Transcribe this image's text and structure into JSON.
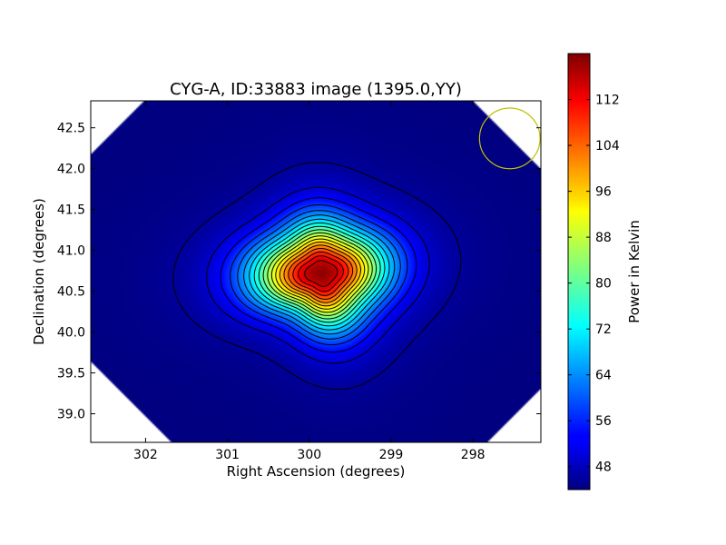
{
  "chart_data": {
    "type": "heatmap",
    "title": "CYG-A, ID:33883 image (1395.0,YY)",
    "xlabel": "Right Ascension (degrees)",
    "ylabel": "Declination (degrees)",
    "xlim": [
      302.67,
      297.17
    ],
    "ylim": [
      38.65,
      42.83
    ],
    "x_inverted": true,
    "x_ticks": [
      "302",
      "301",
      "300",
      "299",
      "298"
    ],
    "x_tick_values": [
      302,
      301,
      300,
      299,
      298
    ],
    "y_ticks": [
      "39.0",
      "39.5",
      "40.0",
      "40.5",
      "41.0",
      "41.5",
      "42.0",
      "42.5"
    ],
    "y_tick_values": [
      39.0,
      39.5,
      40.0,
      40.5,
      41.0,
      41.5,
      42.0,
      42.5
    ],
    "colorbar": {
      "label": "Power in Kelvin",
      "range": [
        44,
        120
      ],
      "ticks": [
        "48",
        "56",
        "64",
        "72",
        "80",
        "88",
        "96",
        "104",
        "112"
      ],
      "tick_values": [
        48,
        56,
        64,
        72,
        80,
        88,
        96,
        104,
        112
      ],
      "colormap": "jet"
    },
    "peak": {
      "ra": 299.85,
      "dec": 40.72,
      "value": 120
    },
    "background_value": 44,
    "beam_marker": {
      "ra": 297.55,
      "dec": 42.37,
      "radius_deg": 0.37,
      "color": "#bfbf00"
    },
    "contours": {
      "color": "#000000",
      "levels": 19
    }
  }
}
